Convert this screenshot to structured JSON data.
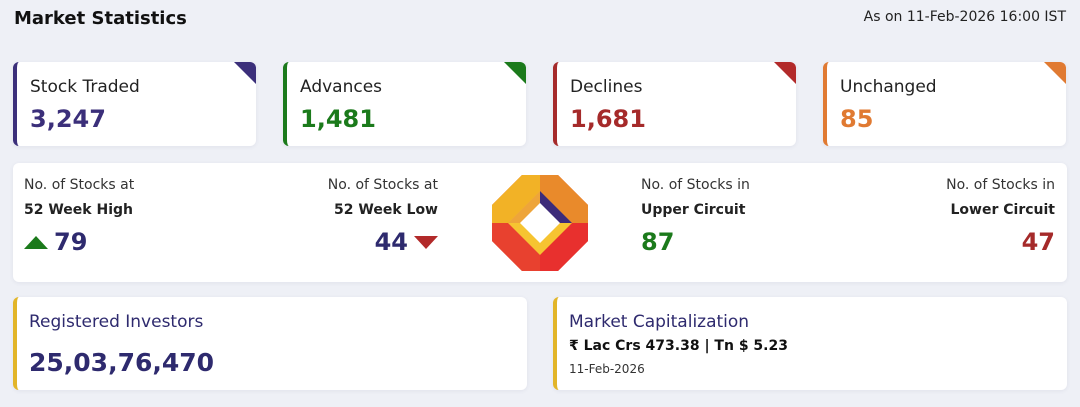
{
  "header": {
    "title": "Market Statistics",
    "as_on": "As on 11-Feb-2026 16:00 IST"
  },
  "stats": [
    {
      "label": "Stock Traded",
      "value": "3,247",
      "color": "#3b2f7a"
    },
    {
      "label": "Advances",
      "value": "1,481",
      "color": "#1b7a1b"
    },
    {
      "label": "Declines",
      "value": "1,681",
      "color": "#a52a2a"
    },
    {
      "label": "Unchanged",
      "value": "85",
      "color": "#e07a32"
    }
  ],
  "week52": {
    "high": {
      "line1": "No. of Stocks at",
      "line2": "52 Week High",
      "value": "79",
      "icon": "arrow-up-icon"
    },
    "low": {
      "line1": "No. of Stocks at",
      "line2": "52 Week Low",
      "value": "44",
      "icon": "arrow-down-icon"
    }
  },
  "circuit": {
    "upper": {
      "line1": "No. of Stocks in",
      "line2": "Upper Circuit",
      "value": "87"
    },
    "lower": {
      "line1": "No. of Stocks in",
      "line2": "Lower Circuit",
      "value": "47"
    }
  },
  "investors": {
    "label": "Registered Investors",
    "value": "25,03,76,470"
  },
  "market_cap": {
    "label": "Market Capitalization",
    "value": "₹ Lac Crs 473.38 | Tn $ 5.23",
    "date": "11-Feb-2026"
  },
  "colors": {
    "accent_yellow": "#e2b528",
    "navy": "#2e2a6e",
    "green": "#1b7a1b",
    "red": "#a52a2a",
    "orange": "#e07a32"
  }
}
